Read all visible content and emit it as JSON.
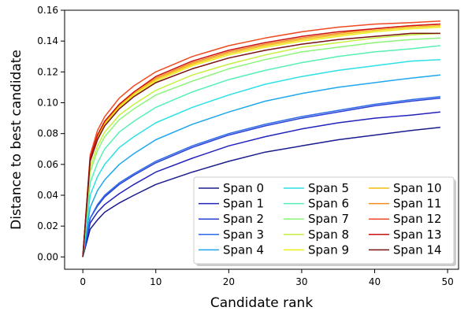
{
  "chart_data": {
    "type": "line",
    "xlabel": "Candidate rank",
    "ylabel": "Distance to best candidate",
    "xlim": [
      -2.5,
      51.5
    ],
    "ylim": [
      -0.008,
      0.16
    ],
    "x_ticks": [
      0,
      10,
      20,
      30,
      40,
      50
    ],
    "y_ticks": [
      0.0,
      0.02,
      0.04,
      0.06,
      0.08,
      0.1,
      0.12,
      0.14,
      0.16
    ],
    "x_tick_labels": [
      "0",
      "10",
      "20",
      "30",
      "40",
      "50"
    ],
    "y_tick_labels": [
      "0.00",
      "0.02",
      "0.04",
      "0.06",
      "0.08",
      "0.10",
      "0.12",
      "0.14",
      "0.16"
    ],
    "grid": false,
    "legend_position": "lower-right",
    "legend_columns": 3,
    "x": [
      0,
      1,
      2,
      3,
      5,
      7,
      10,
      15,
      20,
      25,
      30,
      35,
      40,
      45,
      49
    ],
    "series": [
      {
        "name": "Span 0",
        "color": "#1a1a8c",
        "values": [
          0,
          0.018,
          0.024,
          0.029,
          0.035,
          0.04,
          0.047,
          0.055,
          0.062,
          0.068,
          0.072,
          0.076,
          0.079,
          0.082,
          0.084
        ]
      },
      {
        "name": "Span 1",
        "color": "#2222bb",
        "values": [
          0,
          0.022,
          0.029,
          0.034,
          0.041,
          0.047,
          0.055,
          0.064,
          0.072,
          0.078,
          0.083,
          0.087,
          0.09,
          0.092,
          0.094
        ]
      },
      {
        "name": "Span 2",
        "color": "#2a3fd6",
        "values": [
          0,
          0.025,
          0.033,
          0.039,
          0.047,
          0.053,
          0.061,
          0.071,
          0.079,
          0.085,
          0.09,
          0.094,
          0.098,
          0.101,
          0.103
        ]
      },
      {
        "name": "Span 3",
        "color": "#2a6ae6",
        "values": [
          0,
          0.025,
          0.034,
          0.04,
          0.048,
          0.054,
          0.062,
          0.072,
          0.08,
          0.086,
          0.091,
          0.095,
          0.099,
          0.102,
          0.104
        ]
      },
      {
        "name": "Span 4",
        "color": "#1ea7ee",
        "values": [
          0,
          0.032,
          0.043,
          0.05,
          0.06,
          0.067,
          0.076,
          0.086,
          0.094,
          0.101,
          0.106,
          0.11,
          0.113,
          0.116,
          0.118
        ]
      },
      {
        "name": "Span 5",
        "color": "#2de0e6",
        "values": [
          0,
          0.04,
          0.052,
          0.06,
          0.071,
          0.078,
          0.087,
          0.097,
          0.105,
          0.112,
          0.117,
          0.121,
          0.124,
          0.127,
          0.128
        ]
      },
      {
        "name": "Span 6",
        "color": "#56f0b4",
        "values": [
          0,
          0.048,
          0.061,
          0.07,
          0.081,
          0.088,
          0.097,
          0.107,
          0.115,
          0.121,
          0.126,
          0.13,
          0.133,
          0.135,
          0.137
        ]
      },
      {
        "name": "Span 7",
        "color": "#8cf47a",
        "values": [
          0,
          0.055,
          0.069,
          0.078,
          0.089,
          0.096,
          0.105,
          0.114,
          0.122,
          0.128,
          0.133,
          0.136,
          0.139,
          0.141,
          0.142
        ]
      },
      {
        "name": "Span 8",
        "color": "#c6f03e",
        "values": [
          0,
          0.058,
          0.072,
          0.081,
          0.092,
          0.099,
          0.108,
          0.118,
          0.125,
          0.131,
          0.136,
          0.139,
          0.142,
          0.144,
          0.145
        ]
      },
      {
        "name": "Span 9",
        "color": "#eeee1a",
        "values": [
          0,
          0.062,
          0.077,
          0.086,
          0.097,
          0.105,
          0.114,
          0.124,
          0.131,
          0.136,
          0.14,
          0.143,
          0.146,
          0.148,
          0.149
        ]
      },
      {
        "name": "Span 10",
        "color": "#f7bc0e",
        "values": [
          0,
          0.063,
          0.078,
          0.087,
          0.098,
          0.106,
          0.115,
          0.125,
          0.132,
          0.137,
          0.141,
          0.144,
          0.147,
          0.149,
          0.15
        ]
      },
      {
        "name": "Span 11",
        "color": "#f38a1c",
        "values": [
          0,
          0.064,
          0.079,
          0.088,
          0.099,
          0.107,
          0.116,
          0.126,
          0.133,
          0.138,
          0.142,
          0.145,
          0.148,
          0.15,
          0.151
        ]
      },
      {
        "name": "Span 12",
        "color": "#f04a22",
        "values": [
          0,
          0.066,
          0.082,
          0.091,
          0.103,
          0.111,
          0.12,
          0.13,
          0.137,
          0.142,
          0.146,
          0.149,
          0.151,
          0.152,
          0.153
        ]
      },
      {
        "name": "Span 13",
        "color": "#cc1010",
        "values": [
          0,
          0.064,
          0.079,
          0.088,
          0.099,
          0.107,
          0.117,
          0.127,
          0.134,
          0.139,
          0.143,
          0.146,
          0.148,
          0.15,
          0.151
        ]
      },
      {
        "name": "Span 14",
        "color": "#7a1212",
        "values": [
          0,
          0.062,
          0.076,
          0.085,
          0.096,
          0.104,
          0.113,
          0.122,
          0.129,
          0.134,
          0.138,
          0.141,
          0.143,
          0.145,
          0.145
        ]
      }
    ]
  }
}
